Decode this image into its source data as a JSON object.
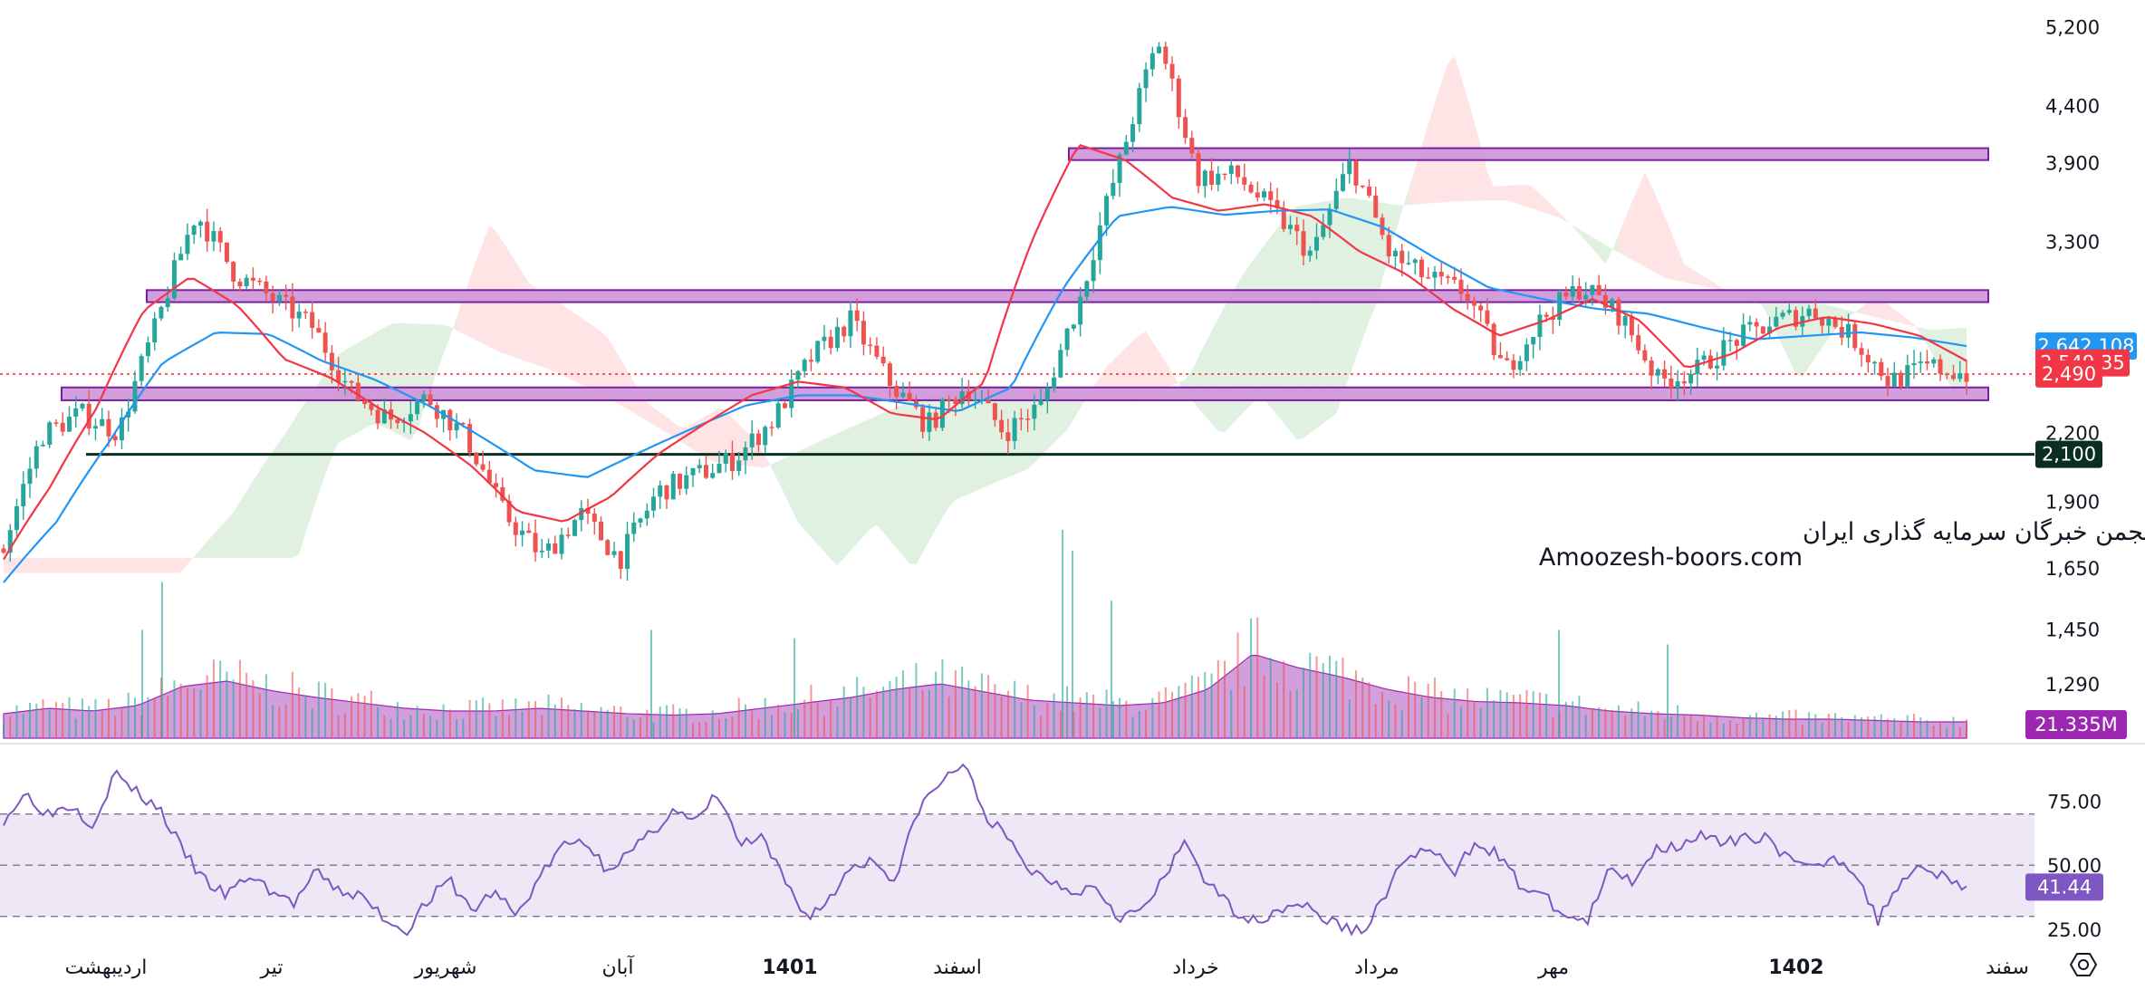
{
  "watermark": {
    "line1": "انجمن خبرگان سرمایه گذاری ایران",
    "line2": "Amoozesh-boors.com"
  },
  "colors": {
    "up": "#26a69a",
    "down": "#ef5350",
    "ema_fast": "#f23645",
    "ema_slow": "#2196f3",
    "zone_fill": "#ce93d8",
    "zone_stroke": "#7b1fa2",
    "support": "#0a2e1f",
    "rsi_line": "#7e57c2",
    "rsi_band": "#ede7f6",
    "volume_ma": "#9c27b0",
    "cloud_bull": "#c8e6c9",
    "cloud_bear": "#ffcdd2"
  },
  "chart_data": [
    {
      "type": "candlestick",
      "scale": "log",
      "ylim": [
        1150,
        5400
      ],
      "y_ticks": [
        "5,200",
        "4,400",
        "3,900",
        "3,300",
        "2,200",
        "1,900",
        "1,650",
        "1,450",
        "1,290"
      ],
      "x_labels": [
        "اردیبهشت",
        "تیر",
        "شهریور",
        "آبان",
        "1401",
        "اسفند",
        "خرداد",
        "مرداد",
        "مهر",
        "1402",
        "سفند"
      ],
      "bold_labels": [
        "1401",
        "1402"
      ],
      "price_path": [
        1720,
        2190,
        2290,
        2200,
        2780,
        3500,
        3080,
        2920,
        2760,
        2400,
        2260,
        2370,
        2180,
        1850,
        1690,
        1850,
        1680,
        1940,
        2010,
        2080,
        2260,
        2580,
        2790,
        2450,
        2230,
        2430,
        2200,
        2340,
        2940,
        3900,
        5050,
        3780,
        3800,
        3510,
        3200,
        3900,
        3210,
        3050,
        2960,
        2500,
        2810,
        3000,
        2820,
        2450,
        2510,
        2680,
        2780,
        2850,
        2700,
        2450,
        2530,
        2490
      ],
      "ema_fast_path": [
        1680,
        1960,
        2320,
        2850,
        3060,
        2880,
        2570,
        2470,
        2320,
        2200,
        2050,
        1860,
        1820,
        1920,
        2100,
        2240,
        2380,
        2450,
        2420,
        2290,
        2260,
        2450,
        3300,
        4050,
        3920,
        3620,
        3520,
        3570,
        3480,
        3230,
        3080,
        2860,
        2700,
        2790,
        2920,
        2790,
        2520,
        2600,
        2750,
        2810,
        2770,
        2700,
        2560
      ],
      "ema_slow_path": [
        1600,
        1820,
        2160,
        2550,
        2720,
        2710,
        2560,
        2460,
        2330,
        2180,
        2030,
        2000,
        2110,
        2220,
        2330,
        2380,
        2380,
        2340,
        2300,
        2420,
        3000,
        3480,
        3550,
        3490,
        3520,
        3530,
        3400,
        3180,
        2990,
        2920,
        2860,
        2830,
        2750,
        2680,
        2700,
        2720,
        2690,
        2642
      ],
      "resistance_zones": [
        [
          3920,
          4020
        ],
        [
          2900,
          2975
        ],
        [
          2355,
          2420
        ]
      ],
      "support_line": 2100,
      "last_price": "2,490",
      "ema_fast_value": "2,549.35",
      "ema_slow_value": "2,642.108",
      "support_label": "2,100",
      "volume_label": "21.335M",
      "volume_path": [
        0.18,
        0.22,
        0.2,
        0.24,
        0.38,
        0.42,
        0.35,
        0.3,
        0.26,
        0.22,
        0.2,
        0.2,
        0.22,
        0.2,
        0.18,
        0.17,
        0.18,
        0.22,
        0.26,
        0.3,
        0.36,
        0.4,
        0.34,
        0.28,
        0.26,
        0.24,
        0.26,
        0.36,
        0.62,
        0.52,
        0.45,
        0.36,
        0.3,
        0.27,
        0.26,
        0.24,
        0.2,
        0.18,
        0.17,
        0.15,
        0.14,
        0.14,
        0.13,
        0.12,
        0.12
      ],
      "volume_spikes": [
        [
          178,
          0.75
        ],
        [
          156,
          0.52
        ],
        [
          1172,
          1.0
        ],
        [
          1183,
          0.9
        ],
        [
          1226,
          0.66
        ],
        [
          1720,
          0.52
        ],
        [
          1840,
          0.45
        ],
        [
          718,
          0.52
        ],
        [
          876,
          0.48
        ]
      ]
    },
    {
      "type": "line",
      "name": "RSI",
      "ylim": [
        20,
        95
      ],
      "y_ticks": [
        "75.00",
        "50.00",
        "25.00"
      ],
      "bands": [
        30,
        50,
        70
      ],
      "rsi_path": [
        68,
        78,
        70,
        74,
        66,
        86,
        78,
        72,
        56,
        44,
        38,
        46,
        40,
        35,
        47,
        40,
        38,
        30,
        24,
        36,
        44,
        32,
        40,
        30,
        45,
        57,
        60,
        49,
        54,
        62,
        72,
        66,
        78,
        58,
        60,
        44,
        30,
        36,
        50,
        52,
        44,
        72,
        82,
        90,
        70,
        60,
        48,
        44,
        40,
        42,
        30,
        32,
        44,
        60,
        42,
        34,
        28,
        32,
        36,
        30,
        26,
        24,
        40,
        54,
        56,
        46,
        60,
        54,
        42,
        38,
        30,
        28,
        48,
        44,
        56,
        58,
        62,
        58,
        60,
        62,
        52,
        48,
        54,
        48,
        28,
        44,
        50,
        46,
        41
      ],
      "current_value": "41.44"
    }
  ]
}
